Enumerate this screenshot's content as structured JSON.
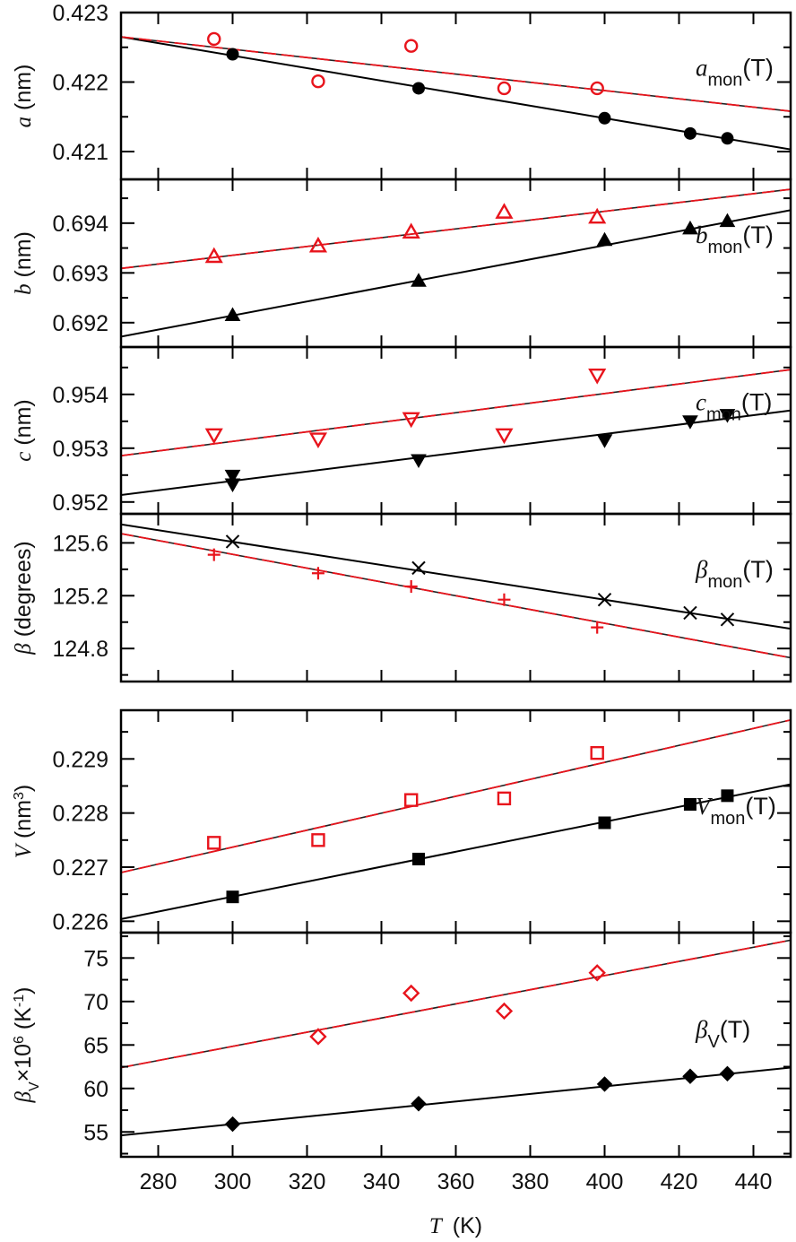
{
  "chart_data": {
    "type": "scatter",
    "xlabel": {
      "symbol": "T",
      "unit": "(K)"
    },
    "xlim": [
      270,
      450
    ],
    "xticks": [
      280,
      300,
      320,
      340,
      360,
      380,
      400,
      420,
      440
    ],
    "colors": {
      "black": "#000000",
      "red": "#e8141c"
    },
    "panels": [
      {
        "ylabel": [
          {
            "t": "a",
            "it": true
          },
          {
            "t": " (nm)"
          }
        ],
        "annotation": {
          "main": "a",
          "sub": "mon",
          "suffix": "(T)"
        },
        "ylim": [
          0.4206,
          0.423
        ],
        "yticks": [
          "0.421",
          "0.422",
          "0.423"
        ],
        "yminor": [
          0.4215,
          0.4225
        ],
        "series": [
          {
            "color": "black",
            "marker": "circle-filled",
            "x": [
              300,
              350,
              400,
              423,
              433
            ],
            "y": [
              0.4224,
              0.42191,
              0.42148,
              0.42126,
              0.42119
            ],
            "fit": [
              [
                270,
                0.42265
              ],
              [
                450,
                0.42103
              ]
            ],
            "fit_style": "solid"
          },
          {
            "color": "red",
            "marker": "circle-open",
            "x": [
              295,
              323,
              348,
              373,
              398
            ],
            "y": [
              0.42262,
              0.42201,
              0.42252,
              0.42191,
              0.42191
            ],
            "fit": [
              [
                270,
                0.42265
              ],
              [
                450,
                0.42158
              ]
            ],
            "fit_style": "dashed"
          }
        ]
      },
      {
        "ylabel": [
          {
            "t": "b",
            "it": true
          },
          {
            "t": " (nm)"
          }
        ],
        "annotation": {
          "main": "b",
          "sub": "mon",
          "suffix": "(T)"
        },
        "ylim": [
          0.69151,
          0.69488
        ],
        "yticks": [
          "0.692",
          "0.693",
          "0.694"
        ],
        "yminor": [
          0.6925,
          0.6935,
          0.6945
        ],
        "series": [
          {
            "color": "black",
            "marker": "triangle-up-filled",
            "x": [
              300,
              350,
              400,
              423,
              433
            ],
            "y": [
              0.69215,
              0.69284,
              0.69366,
              0.69389,
              0.69404
            ],
            "fit": [
              [
                270,
                0.69172
              ],
              [
                450,
                0.69426
              ]
            ],
            "fit_style": "solid"
          },
          {
            "color": "red",
            "marker": "triangle-up-open",
            "x": [
              295,
              323,
              348,
              373,
              398
            ],
            "y": [
              0.69333,
              0.69354,
              0.69382,
              0.69422,
              0.69412
            ],
            "fit": [
              [
                270,
                0.69309
              ],
              [
                450,
                0.69468
              ]
            ],
            "fit_style": "dashed"
          }
        ]
      },
      {
        "ylabel": [
          {
            "t": "c",
            "it": true
          },
          {
            "t": " (nm)"
          }
        ],
        "annotation": {
          "main": "c",
          "sub": "mon",
          "suffix": "(T)"
        },
        "ylim": [
          0.95178,
          0.95488
        ],
        "yticks": [
          "0.952",
          "0.953",
          "0.954"
        ],
        "yminor": [
          0.9525,
          0.9535,
          0.9545
        ],
        "series": [
          {
            "color": "black",
            "marker": "triangle-down-filled",
            "x": [
              300,
              300,
              350,
              400,
              423,
              433
            ],
            "y": [
              0.95249,
              0.95233,
              0.95278,
              0.95315,
              0.9535,
              0.95362
            ],
            "fit": [
              [
                270,
                0.95213
              ],
              [
                450,
                0.9537
              ]
            ],
            "fit_style": "solid"
          },
          {
            "color": "red",
            "marker": "triangle-down-open",
            "x": [
              295,
              323,
              348,
              373,
              398
            ],
            "y": [
              0.95325,
              0.95317,
              0.95355,
              0.95325,
              0.95436
            ],
            "fit": [
              [
                270,
                0.95286
              ],
              [
                450,
                0.95446
              ]
            ],
            "fit_style": "dashed"
          }
        ]
      },
      {
        "ylabel": [
          {
            "t": "β",
            "it": true
          },
          {
            "t": " (degrees)"
          }
        ],
        "annotation": {
          "main": "β",
          "sub": "mon",
          "suffix": "(T)"
        },
        "ylim": [
          124.55,
          125.82
        ],
        "yticks": [
          "124.8",
          "125.2",
          "125.6"
        ],
        "yminor": [
          124.6,
          125.0,
          125.4
        ],
        "series": [
          {
            "color": "black",
            "marker": "x-cross",
            "x": [
              300,
              350,
              400,
              423,
              433
            ],
            "y": [
              125.61,
              125.41,
              125.17,
              125.07,
              125.02
            ],
            "fit": [
              [
                270,
                125.74
              ],
              [
                450,
                124.95
              ]
            ],
            "fit_style": "solid"
          },
          {
            "color": "red",
            "marker": "plus",
            "x": [
              295,
              323,
              348,
              373,
              398
            ],
            "y": [
              125.51,
              125.37,
              125.27,
              125.17,
              124.96
            ],
            "fit": [
              [
                270,
                125.67
              ],
              [
                450,
                124.73
              ]
            ],
            "fit_style": "dashed"
          }
        ]
      },
      {
        "ylabel": [
          {
            "t": "V",
            "it": true
          },
          {
            "t": " (nm"
          },
          {
            "t": "3",
            "sup": true
          },
          {
            "t": ")"
          }
        ],
        "annotation": {
          "main": "V",
          "sub": "mon",
          "suffix": "(T)"
        },
        "ylim": [
          0.22579,
          0.2299
        ],
        "yticks": [
          "0.226",
          "0.227",
          "0.228",
          "0.229"
        ],
        "yminor": [
          0.2265,
          0.2275,
          0.2285,
          0.2295
        ],
        "series": [
          {
            "color": "black",
            "marker": "square-filled",
            "x": [
              300,
              350,
              400,
              423,
              433
            ],
            "y": [
              0.22645,
              0.22715,
              0.22782,
              0.22816,
              0.22832
            ],
            "fit": [
              [
                270,
                0.22604
              ],
              [
                450,
                0.22853
              ]
            ],
            "fit_style": "solid"
          },
          {
            "color": "red",
            "marker": "square-open",
            "x": [
              295,
              323,
              348,
              373,
              398
            ],
            "y": [
              0.22745,
              0.2275,
              0.22824,
              0.22827,
              0.22911
            ],
            "fit": [
              [
                270,
                0.2269
              ],
              [
                450,
                0.22972
              ]
            ],
            "fit_style": "dashed"
          }
        ]
      },
      {
        "ylabel": [
          {
            "t": "β",
            "it": true
          },
          {
            "t": "V",
            "sub": true
          },
          {
            "t": "×10"
          },
          {
            "t": "6",
            "sup": true
          },
          {
            "t": " (K"
          },
          {
            "t": "-1",
            "sup": true
          },
          {
            "t": ")"
          }
        ],
        "annotation": {
          "main": "β",
          "sub": "V",
          "suffix": "(T)"
        },
        "ylim": [
          52.14,
          77.92
        ],
        "yticks": [
          "55",
          "60",
          "65",
          "70",
          "75"
        ],
        "yminor": [
          52.5,
          57.5,
          62.5,
          67.5,
          72.5,
          77.5
        ],
        "series": [
          {
            "color": "black",
            "marker": "diamond-filled",
            "x": [
              300,
              350,
              400,
              423,
              433
            ],
            "y": [
              55.9,
              58.25,
              60.5,
              61.4,
              61.7
            ],
            "fit": [
              [
                270,
                54.6
              ],
              [
                450,
                62.4
              ]
            ],
            "fit_style": "solid"
          },
          {
            "color": "red",
            "marker": "diamond-open",
            "x": [
              323,
              348,
              373,
              398
            ],
            "y": [
              65.96,
              70.96,
              68.9,
              73.3
            ],
            "fit": [
              [
                270,
                62.4
              ],
              [
                450,
                77.05
              ]
            ],
            "fit_style": "dashed"
          }
        ]
      }
    ]
  }
}
